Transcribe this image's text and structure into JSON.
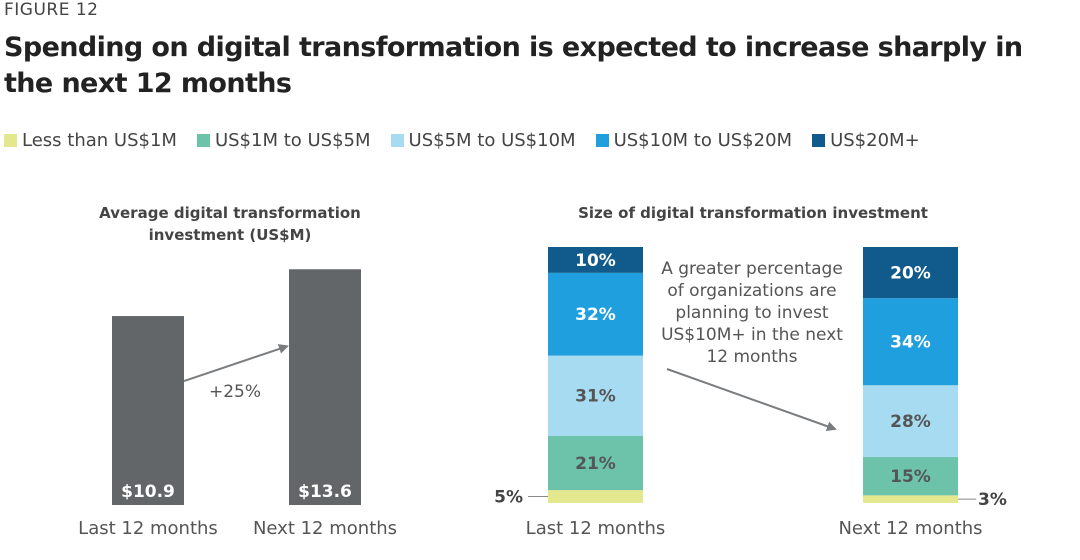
{
  "figure_label": "FIGURE 12",
  "title": "Spending on digital transformation is expected to increase sharply in the next 12 months",
  "legend": [
    {
      "label": "Less than US$1M",
      "color": "#e3e88e"
    },
    {
      "label": "US$1M to US$5M",
      "color": "#6cc3aa"
    },
    {
      "label": "US$5M to US$10M",
      "color": "#a6dbf2"
    },
    {
      "label": "US$10M to US$20M",
      "color": "#1f9fde"
    },
    {
      "label": "US$20M+",
      "color": "#105a8c"
    }
  ],
  "chart_data": [
    {
      "type": "bar",
      "title": "Average digital transformation investment (US$M)",
      "title_lines": [
        "Average digital transformation",
        "investment (US$M)"
      ],
      "categories": [
        "Last 12 months",
        "Next 12 months"
      ],
      "values": [
        10.9,
        13.6
      ],
      "value_labels": [
        "$10.9",
        "$13.6"
      ],
      "ylim": [
        0,
        15
      ],
      "color": "#626669",
      "annotation": "+25%"
    },
    {
      "type": "bar",
      "stacked": true,
      "title": "Size of digital transformation investment",
      "categories": [
        "Last 12 months",
        "Next 12 months"
      ],
      "series": [
        {
          "name": "Less than US$1M",
          "values": [
            5,
            3
          ],
          "labels": [
            "5%",
            "3%"
          ],
          "color": "#e3e88e"
        },
        {
          "name": "US$1M to US$5M",
          "values": [
            21,
            15
          ],
          "labels": [
            "21%",
            "15%"
          ],
          "color": "#6cc3aa"
        },
        {
          "name": "US$5M to US$10M",
          "values": [
            31,
            28
          ],
          "labels": [
            "31%",
            "28%"
          ],
          "color": "#a6dbf2"
        },
        {
          "name": "US$10M to US$20M",
          "values": [
            32,
            34
          ],
          "labels": [
            "32%",
            "34%"
          ],
          "color": "#1f9fde"
        },
        {
          "name": "US$20M+",
          "values": [
            10,
            20
          ],
          "labels": [
            "10%",
            "20%"
          ],
          "color": "#105a8c"
        }
      ],
      "annotation_lines": [
        "A greater percentage",
        "of organizations are",
        "planning to invest",
        "US$10M+ in the next",
        "12 months"
      ]
    }
  ]
}
